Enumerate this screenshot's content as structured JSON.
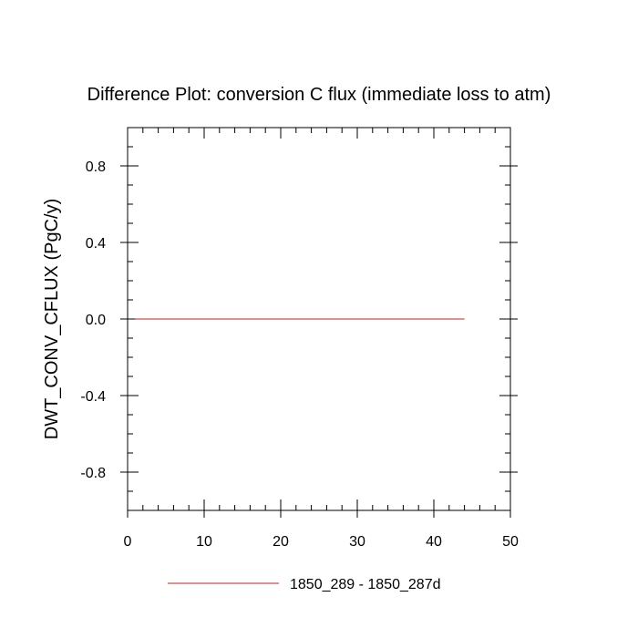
{
  "chart_data": {
    "type": "line",
    "title": "Difference Plot: conversion C flux (immediate loss to atm)",
    "xlabel": "",
    "ylabel": "DWT_CONV_CFLUX  (PgC/y)",
    "xlim": [
      0,
      50
    ],
    "ylim": [
      -1.0,
      1.0
    ],
    "xticks": [
      0,
      10,
      20,
      30,
      40,
      50
    ],
    "xtick_labels": [
      "0",
      "10",
      "20",
      "30",
      "40",
      "50"
    ],
    "yticks": [
      -0.8,
      -0.4,
      0.0,
      0.4,
      0.8
    ],
    "ytick_labels": [
      "-0.8",
      "-0.4",
      "0.0",
      "0.4",
      "0.8"
    ],
    "grid": false,
    "legend_position": "bottom-center",
    "series": [
      {
        "name": "1850_289 - 1850_287d",
        "color": "#e06666",
        "x": [
          1,
          44
        ],
        "y": [
          0.0,
          0.0
        ]
      }
    ]
  }
}
